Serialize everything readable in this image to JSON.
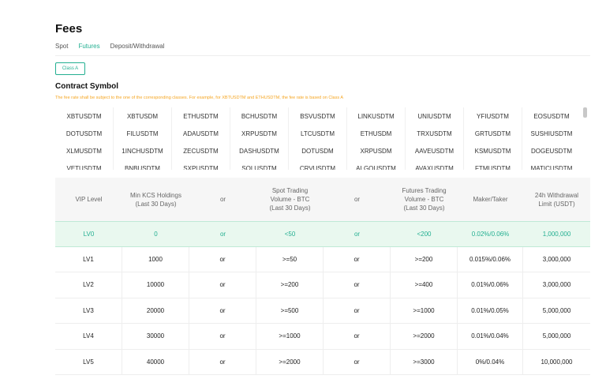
{
  "header": {
    "title": "Fees",
    "tabs": [
      "Spot",
      "Futures",
      "Deposit/Withdrawal"
    ],
    "active_tab": 1
  },
  "class_button": "Class A",
  "section": {
    "title": "Contract Symbol",
    "note": "The fee rate shall be subject to the one of the corresponding classes. For example, for XBTUSDTM and ETHUSDTM, the fee rate is based on Class A",
    "symbols": [
      [
        "XBTUSDTM",
        "XBTUSDM",
        "ETHUSDTM",
        "BCHUSDTM",
        "BSVUSDTM",
        "LINKUSDTM",
        "UNIUSDTM",
        "YFIUSDTM",
        "EOSUSDTM"
      ],
      [
        "DOTUSDTM",
        "FILUSDTM",
        "ADAUSDTM",
        "XRPUSDTM",
        "LTCUSDTM",
        "ETHUSDM",
        "TRXUSDTM",
        "GRTUSDTM",
        "SUSHIUSDTM"
      ],
      [
        "XLMUSDTM",
        "1INCHUSDTM",
        "ZECUSDTM",
        "DASHUSDTM",
        "DOTUSDM",
        "XRPUSDM",
        "AAVEUSDTM",
        "KSMUSDTM",
        "DOGEUSDTM"
      ],
      [
        "VETUSDTM",
        "BNBUSDTM",
        "SXPUSDTM",
        "SOLUSDTM",
        "CRVUSDTM",
        "ALGOUSDTM",
        "AVAXUSDTM",
        "FTMUSDTM",
        "MATICUSDTM"
      ]
    ]
  },
  "table": {
    "columns": [
      [
        "VIP Level"
      ],
      [
        "Min KCS Holdings",
        "(Last 30 Days)"
      ],
      [
        "or"
      ],
      [
        "Spot Trading",
        "Volume - BTC",
        "(Last 30 Days)"
      ],
      [
        "or"
      ],
      [
        "Futures Trading",
        "Volume - BTC",
        "(Last 30 Days)"
      ],
      [
        "Maker/Taker"
      ],
      [
        "24h Withdrawal",
        "Limit (USDT)"
      ]
    ],
    "highlighted_row": 0,
    "rows": [
      [
        "LV0",
        "0",
        "or",
        "<50",
        "or",
        "<200",
        "0.02%/0.06%",
        "1,000,000"
      ],
      [
        "LV1",
        "1000",
        "or",
        ">=50",
        "or",
        ">=200",
        "0.015%/0.06%",
        "3,000,000"
      ],
      [
        "LV2",
        "10000",
        "or",
        ">=200",
        "or",
        ">=400",
        "0.01%/0.06%",
        "3,000,000"
      ],
      [
        "LV3",
        "20000",
        "or",
        ">=500",
        "or",
        ">=1000",
        "0.01%/0.05%",
        "5,000,000"
      ],
      [
        "LV4",
        "30000",
        "or",
        ">=1000",
        "or",
        ">=2000",
        "0.01%/0.04%",
        "5,000,000"
      ],
      [
        "LV5",
        "40000",
        "or",
        ">=2000",
        "or",
        ">=3000",
        "0%/0.04%",
        "10,000,000"
      ]
    ]
  }
}
